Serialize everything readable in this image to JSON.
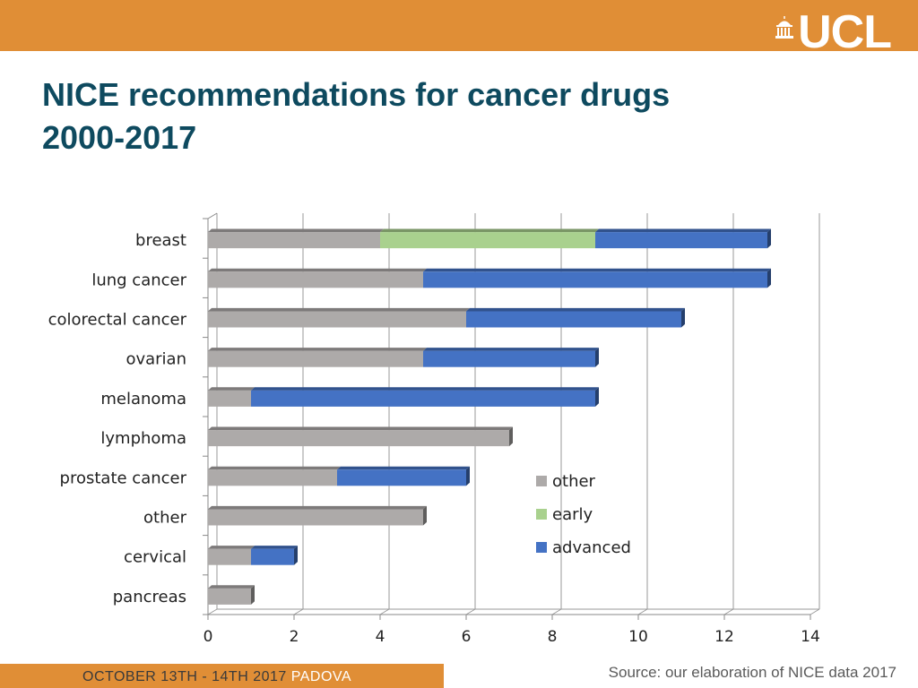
{
  "header": {
    "logo_text": "UCL",
    "title_line1": "NICE recommendations for cancer drugs",
    "title_line2": "2000-2017"
  },
  "footer": {
    "event_date": "OCTOBER 13TH - 14TH 2017",
    "event_city": "PADOVA",
    "source": "Source: our elaboration of  NICE data 2017"
  },
  "colors": {
    "banner": "#e08e36",
    "title": "#0e4a5f",
    "other": "#adaaa9",
    "early": "#a9d18e",
    "advanced": "#4472c4"
  },
  "chart_data": {
    "type": "bar",
    "orientation": "horizontal",
    "stacked": true,
    "categories": [
      "breast",
      "lung cancer",
      "colorectal cancer",
      "ovarian",
      "melanoma",
      "lymphoma",
      "prostate cancer",
      "other",
      "cervical",
      "pancreas"
    ],
    "series": [
      {
        "name": "other",
        "values": [
          4,
          5,
          6,
          5,
          1,
          7,
          3,
          5,
          1,
          1
        ]
      },
      {
        "name": "early",
        "values": [
          5,
          0,
          0,
          0,
          0,
          0,
          0,
          0,
          0,
          0
        ]
      },
      {
        "name": "advanced",
        "values": [
          4,
          8,
          5,
          4,
          8,
          0,
          3,
          0,
          1,
          0
        ]
      }
    ],
    "xlim": [
      0,
      14
    ],
    "xticks": [
      0,
      2,
      4,
      6,
      8,
      10,
      12,
      14
    ],
    "grid": true,
    "legend_position": "lower-right"
  }
}
